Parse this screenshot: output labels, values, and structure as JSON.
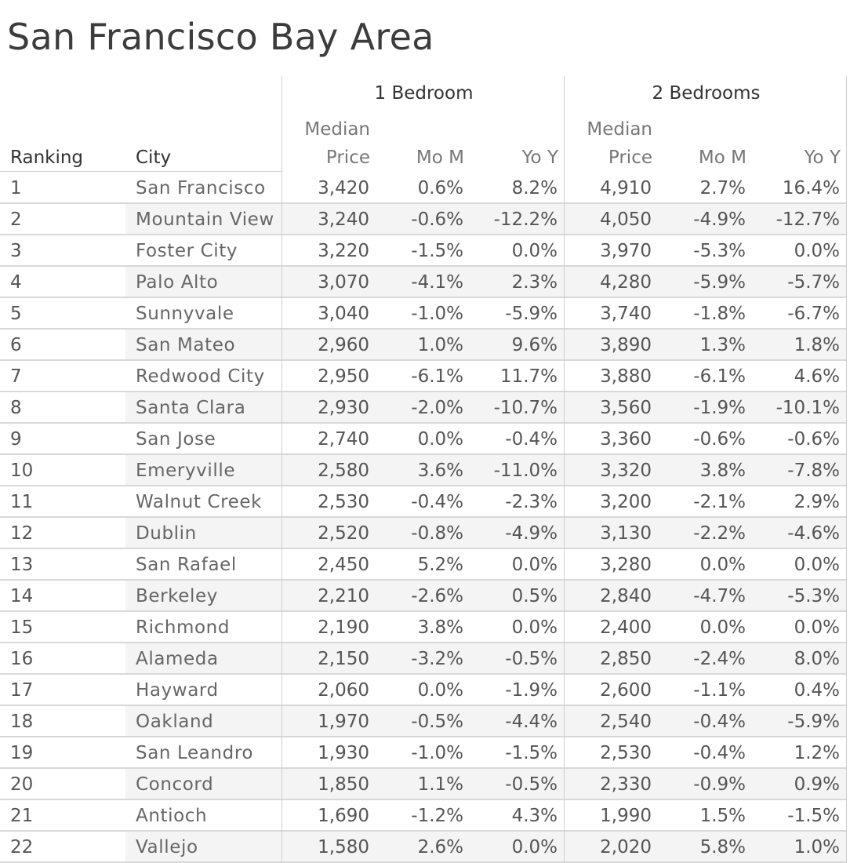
{
  "title": "San Francisco Bay Area",
  "headers": {
    "ranking": "Ranking",
    "city": "City",
    "group1": "1 Bedroom",
    "group2": "2 Bedrooms",
    "median_top": "Median",
    "median_bottom": "Price",
    "mom": "Mo M",
    "yoy": "Yo Y"
  },
  "chart_data": {
    "type": "table",
    "columns": [
      "Ranking",
      "City",
      "1 Bedroom Median Price",
      "1 Bedroom Mo M",
      "1 Bedroom Yo Y",
      "2 Bedrooms Median Price",
      "2 Bedrooms Mo M",
      "2 Bedrooms Yo Y"
    ],
    "rows": [
      [
        "1",
        "San Francisco",
        "3,420",
        "0.6%",
        "8.2%",
        "4,910",
        "2.7%",
        "16.4%"
      ],
      [
        "2",
        "Mountain View",
        "3,240",
        "-0.6%",
        "-12.2%",
        "4,050",
        "-4.9%",
        "-12.7%"
      ],
      [
        "3",
        "Foster City",
        "3,220",
        "-1.5%",
        "0.0%",
        "3,970",
        "-5.3%",
        "0.0%"
      ],
      [
        "4",
        "Palo Alto",
        "3,070",
        "-4.1%",
        "2.3%",
        "4,280",
        "-5.9%",
        "-5.7%"
      ],
      [
        "5",
        "Sunnyvale",
        "3,040",
        "-1.0%",
        "-5.9%",
        "3,740",
        "-1.8%",
        "-6.7%"
      ],
      [
        "6",
        "San Mateo",
        "2,960",
        "1.0%",
        "9.6%",
        "3,890",
        "1.3%",
        "1.8%"
      ],
      [
        "7",
        "Redwood City",
        "2,950",
        "-6.1%",
        "11.7%",
        "3,880",
        "-6.1%",
        "4.6%"
      ],
      [
        "8",
        "Santa Clara",
        "2,930",
        "-2.0%",
        "-10.7%",
        "3,560",
        "-1.9%",
        "-10.1%"
      ],
      [
        "9",
        "San Jose",
        "2,740",
        "0.0%",
        "-0.4%",
        "3,360",
        "-0.6%",
        "-0.6%"
      ],
      [
        "10",
        "Emeryville",
        "2,580",
        "3.6%",
        "-11.0%",
        "3,320",
        "3.8%",
        "-7.8%"
      ],
      [
        "11",
        "Walnut Creek",
        "2,530",
        "-0.4%",
        "-2.3%",
        "3,200",
        "-2.1%",
        "2.9%"
      ],
      [
        "12",
        "Dublin",
        "2,520",
        "-0.8%",
        "-4.9%",
        "3,130",
        "-2.2%",
        "-4.6%"
      ],
      [
        "13",
        "San Rafael",
        "2,450",
        "5.2%",
        "0.0%",
        "3,280",
        "0.0%",
        "0.0%"
      ],
      [
        "14",
        "Berkeley",
        "2,210",
        "-2.6%",
        "0.5%",
        "2,840",
        "-4.7%",
        "-5.3%"
      ],
      [
        "15",
        "Richmond",
        "2,190",
        "3.8%",
        "0.0%",
        "2,400",
        "0.0%",
        "0.0%"
      ],
      [
        "16",
        "Alameda",
        "2,150",
        "-3.2%",
        "-0.5%",
        "2,850",
        "-2.4%",
        "8.0%"
      ],
      [
        "17",
        "Hayward",
        "2,060",
        "0.0%",
        "-1.9%",
        "2,600",
        "-1.1%",
        "0.4%"
      ],
      [
        "18",
        "Oakland",
        "1,970",
        "-0.5%",
        "-4.4%",
        "2,540",
        "-0.4%",
        "-5.9%"
      ],
      [
        "19",
        "San Leandro",
        "1,930",
        "-1.0%",
        "-1.5%",
        "2,530",
        "-0.4%",
        "1.2%"
      ],
      [
        "20",
        "Concord",
        "1,850",
        "1.1%",
        "-0.5%",
        "2,330",
        "-0.9%",
        "0.9%"
      ],
      [
        "21",
        "Antioch",
        "1,690",
        "-1.2%",
        "4.3%",
        "1,990",
        "1.5%",
        "-1.5%"
      ],
      [
        "22",
        "Vallejo",
        "1,580",
        "2.6%",
        "0.0%",
        "2,020",
        "5.8%",
        "1.0%"
      ]
    ]
  }
}
